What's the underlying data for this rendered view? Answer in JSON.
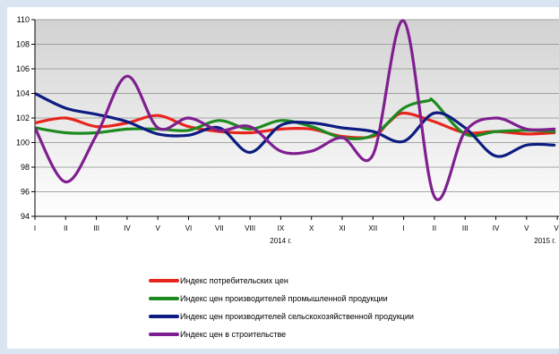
{
  "chart_data": {
    "type": "line",
    "title": "",
    "xlabel": "",
    "ylabel": "",
    "categories": [
      "I",
      "II",
      "III",
      "IV",
      "V",
      "VI",
      "VII",
      "VIII",
      "IX",
      "X",
      "XI",
      "XII",
      "I",
      "II",
      "III",
      "IV",
      "V",
      "VI"
    ],
    "year_labels": [
      {
        "label": "2014 г.",
        "category_index": 8
      },
      {
        "label": "2015 г.",
        "category_index": 16.6
      }
    ],
    "yticks": [
      94,
      96,
      98,
      100,
      102,
      104,
      106,
      108,
      110
    ],
    "ylim": [
      94,
      110
    ],
    "grid": "horizontal",
    "legend_position": "bottom",
    "series": [
      {
        "name": "Индекс потребительских цен",
        "color": "#e8251d",
        "x": [
          0,
          1,
          2,
          3,
          4,
          5,
          6,
          7,
          8,
          9,
          10,
          11,
          11.5,
          12,
          13,
          14,
          15,
          16,
          16.9
        ],
        "values": [
          101.6,
          102.0,
          101.3,
          101.6,
          102.2,
          101.3,
          100.9,
          100.8,
          101.1,
          101.1,
          100.5,
          100.5,
          101.6,
          102.4,
          101.7,
          100.8,
          100.9,
          100.7,
          100.8
        ]
      },
      {
        "name": "Индекс цен производителей промышленной продукции",
        "color": "#1d8a1f",
        "x": [
          0,
          1,
          2,
          3,
          4,
          5,
          6,
          7,
          8,
          9,
          10,
          11,
          12,
          12.8,
          13,
          14,
          15,
          16,
          16.9
        ],
        "values": [
          101.2,
          100.8,
          100.8,
          101.1,
          101.1,
          101.0,
          101.8,
          101.1,
          101.8,
          101.3,
          100.4,
          100.6,
          102.8,
          103.4,
          103.3,
          100.7,
          100.9,
          101.0,
          100.9
        ]
      },
      {
        "name": "Индекс цен производителей сельскохозяйственной продукции",
        "color": "#0c1c80",
        "x": [
          0,
          1,
          2,
          3,
          4,
          5,
          6,
          7,
          8,
          9,
          10,
          11,
          12,
          13,
          14,
          15,
          16,
          16.9
        ],
        "values": [
          104.0,
          102.8,
          102.3,
          101.7,
          100.7,
          100.6,
          101.2,
          99.2,
          101.4,
          101.6,
          101.2,
          100.9,
          100.1,
          102.4,
          101.2,
          98.9,
          99.8,
          99.8
        ]
      },
      {
        "name": "Индекс цен в строительстве",
        "color": "#7f1f8f",
        "x": [
          0,
          1,
          2,
          3,
          4,
          5,
          6,
          7,
          8,
          9,
          10,
          11,
          12,
          13,
          14,
          15,
          16,
          16.9
        ],
        "values": [
          101.2,
          96.8,
          100.6,
          105.4,
          101.2,
          102.0,
          101.0,
          101.3,
          99.3,
          99.3,
          100.4,
          99.0,
          109.9,
          95.6,
          100.9,
          102.0,
          101.1,
          101.1
        ]
      }
    ]
  }
}
